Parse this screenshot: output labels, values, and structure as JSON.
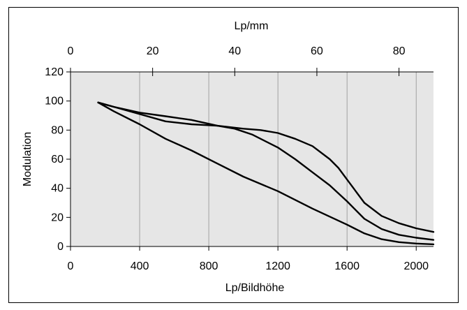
{
  "chart_data": {
    "type": "line",
    "xlabel": "Lp/Bildhöhe",
    "ylabel": "Modulation",
    "x2label": "Lp/mm",
    "xlim": [
      0,
      2100
    ],
    "ylim": [
      0,
      120
    ],
    "x2lim": [
      0,
      88.4
    ],
    "x_ticks": [
      0,
      400,
      800,
      1200,
      1600,
      2000
    ],
    "y_ticks": [
      0,
      20,
      40,
      60,
      80,
      100,
      120
    ],
    "x2_ticks": [
      0,
      20,
      40,
      60,
      80
    ],
    "grid": "vertical",
    "plot_background": "#e6e6e6",
    "line_color": "#000000",
    "series": [
      {
        "x": [
          160,
          250,
          400,
          550,
          700,
          850,
          1000,
          1100,
          1200,
          1300,
          1400,
          1500,
          1550,
          1600,
          1700,
          1800,
          1900,
          2000,
          2100
        ],
        "y": [
          99,
          96,
          92,
          89.5,
          87,
          83,
          81,
          80,
          78,
          74,
          69,
          60,
          54,
          46,
          30,
          21,
          16,
          12.5,
          10
        ]
      },
      {
        "x": [
          160,
          250,
          400,
          550,
          700,
          850,
          950,
          1050,
          1200,
          1300,
          1400,
          1500,
          1600,
          1700,
          1800,
          1900,
          2000,
          2100
        ],
        "y": [
          99,
          96,
          91,
          86,
          84,
          83,
          81,
          77,
          68,
          60,
          51,
          42,
          31,
          19,
          12,
          8,
          6,
          4.5
        ]
      },
      {
        "x": [
          160,
          250,
          400,
          550,
          700,
          850,
          1000,
          1200,
          1400,
          1600,
          1700,
          1800,
          1900,
          2000,
          2100
        ],
        "y": [
          99,
          93,
          84,
          74,
          66,
          57,
          48,
          38,
          26,
          15,
          9,
          5,
          3,
          2,
          1.5
        ]
      }
    ]
  }
}
